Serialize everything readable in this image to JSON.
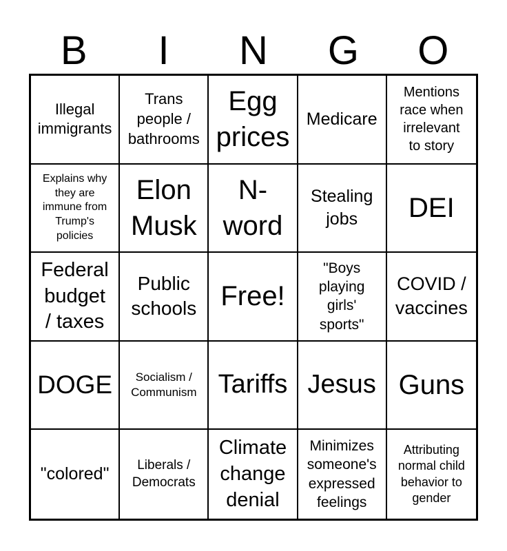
{
  "colors": {
    "background": "#ffffff",
    "ink": "#000000",
    "grid_line": "#000000"
  },
  "header": {
    "letters": [
      "B",
      "I",
      "N",
      "G",
      "O"
    ]
  },
  "card": {
    "rows": 5,
    "cols": 5,
    "cells": [
      {
        "text": "Illegal\nimmigrants",
        "fs": 22
      },
      {
        "text": "Trans\npeople /\nbathrooms",
        "fs": 22
      },
      {
        "text": "Egg\nprices",
        "fs": 40
      },
      {
        "text": "Medicare",
        "fs": 25
      },
      {
        "text": "Mentions\nrace when\nirrelevant\nto story",
        "fs": 20
      },
      {
        "text": "Explains why\nthey are\nimmune from\nTrump's\npolicies",
        "fs": 16
      },
      {
        "text": "Elon\nMusk",
        "fs": 40
      },
      {
        "text": "N-\nword",
        "fs": 40
      },
      {
        "text": "Stealing\njobs",
        "fs": 25
      },
      {
        "text": "DEI",
        "fs": 40
      },
      {
        "text": "Federal\nbudget\n/ taxes",
        "fs": 29
      },
      {
        "text": "Public\nschools",
        "fs": 28
      },
      {
        "text": "Free!",
        "fs": 40
      },
      {
        "text": "\"Boys\nplaying\ngirls'\nsports\"",
        "fs": 21
      },
      {
        "text": "COVID /\nvaccines",
        "fs": 27
      },
      {
        "text": "DOGE",
        "fs": 37
      },
      {
        "text": "Socialism /\nCommunism",
        "fs": 17
      },
      {
        "text": "Tariffs",
        "fs": 38
      },
      {
        "text": "Jesus",
        "fs": 38
      },
      {
        "text": "Guns",
        "fs": 40
      },
      {
        "text": "\"colored\"",
        "fs": 25
      },
      {
        "text": "Liberals /\nDemocrats",
        "fs": 19
      },
      {
        "text": "Climate\nchange\ndenial",
        "fs": 29
      },
      {
        "text": "Minimizes\nsomeone's\nexpressed\nfeelings",
        "fs": 21
      },
      {
        "text": "Attributing\nnormal child\nbehavior to\ngender",
        "fs": 18
      }
    ]
  }
}
